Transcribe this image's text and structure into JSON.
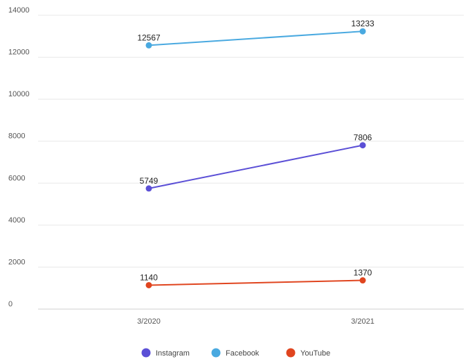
{
  "chart_data": {
    "type": "line",
    "title": "",
    "xlabel": "",
    "ylabel": "",
    "categories": [
      "3/2020",
      "3/2021"
    ],
    "y_ticks": [
      "0",
      "2000",
      "4000",
      "6000",
      "8000",
      "10000",
      "12000",
      "14000"
    ],
    "ylim": [
      0,
      14000
    ],
    "grid": true,
    "legend_position": "bottom",
    "series": [
      {
        "name": "Instagram",
        "values": [
          5749,
          7806
        ],
        "color": "#5b4fd6"
      },
      {
        "name": "Facebook",
        "values": [
          12567,
          13233
        ],
        "color": "#49a9e0"
      },
      {
        "name": "YouTube",
        "values": [
          1140,
          1370
        ],
        "color": "#e0451f"
      }
    ]
  }
}
